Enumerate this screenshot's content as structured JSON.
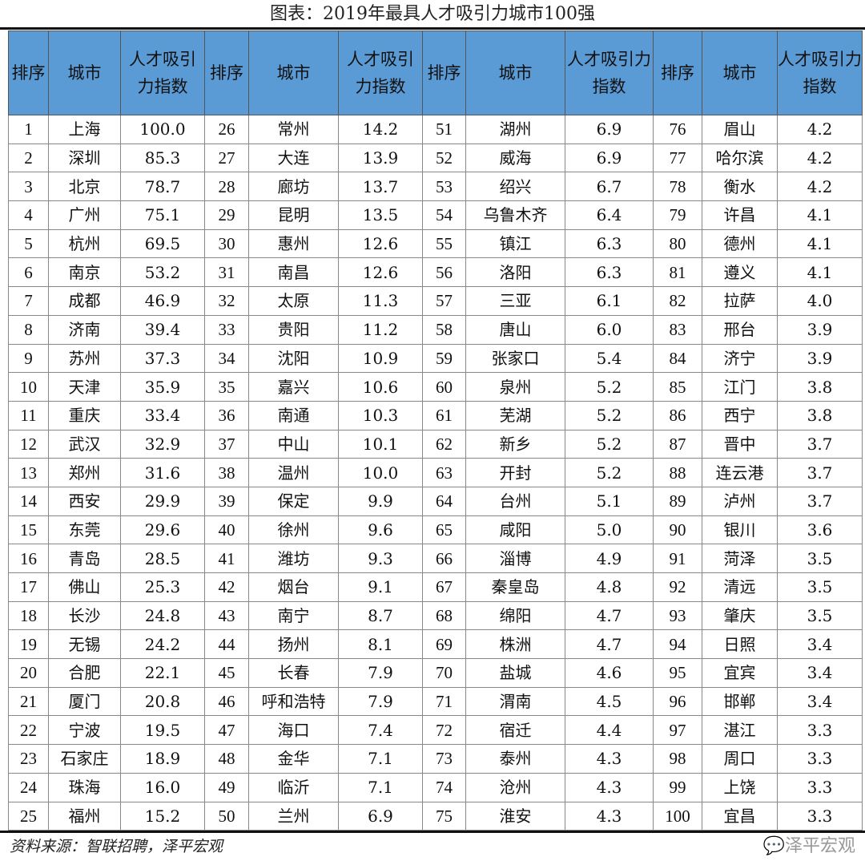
{
  "title": "图表：2019年最具人才吸引力城市100强",
  "headers": {
    "rank": "排序",
    "city": "城市",
    "index": "人才吸引力指数"
  },
  "header_color": "#5B9BD5",
  "rows": [
    [
      "1",
      "上海",
      "100.0"
    ],
    [
      "2",
      "深圳",
      "85.3"
    ],
    [
      "3",
      "北京",
      "78.7"
    ],
    [
      "4",
      "广州",
      "75.1"
    ],
    [
      "5",
      "杭州",
      "69.5"
    ],
    [
      "6",
      "南京",
      "53.2"
    ],
    [
      "7",
      "成都",
      "46.9"
    ],
    [
      "8",
      "济南",
      "39.4"
    ],
    [
      "9",
      "苏州",
      "37.3"
    ],
    [
      "10",
      "天津",
      "35.9"
    ],
    [
      "11",
      "重庆",
      "33.4"
    ],
    [
      "12",
      "武汉",
      "32.9"
    ],
    [
      "13",
      "郑州",
      "31.6"
    ],
    [
      "14",
      "西安",
      "29.9"
    ],
    [
      "15",
      "东莞",
      "29.6"
    ],
    [
      "16",
      "青岛",
      "28.5"
    ],
    [
      "17",
      "佛山",
      "25.3"
    ],
    [
      "18",
      "长沙",
      "24.8"
    ],
    [
      "19",
      "无锡",
      "24.2"
    ],
    [
      "20",
      "合肥",
      "22.1"
    ],
    [
      "21",
      "厦门",
      "20.8"
    ],
    [
      "22",
      "宁波",
      "19.5"
    ],
    [
      "23",
      "石家庄",
      "18.9"
    ],
    [
      "24",
      "珠海",
      "16.0"
    ],
    [
      "25",
      "福州",
      "15.2"
    ],
    [
      "26",
      "常州",
      "14.2"
    ],
    [
      "27",
      "大连",
      "13.9"
    ],
    [
      "28",
      "廊坊",
      "13.7"
    ],
    [
      "29",
      "昆明",
      "13.5"
    ],
    [
      "30",
      "惠州",
      "12.6"
    ],
    [
      "31",
      "南昌",
      "12.6"
    ],
    [
      "32",
      "太原",
      "11.3"
    ],
    [
      "33",
      "贵阳",
      "11.2"
    ],
    [
      "34",
      "沈阳",
      "10.9"
    ],
    [
      "35",
      "嘉兴",
      "10.6"
    ],
    [
      "36",
      "南通",
      "10.3"
    ],
    [
      "37",
      "中山",
      "10.1"
    ],
    [
      "38",
      "温州",
      "10.0"
    ],
    [
      "39",
      "保定",
      "9.9"
    ],
    [
      "40",
      "徐州",
      "9.6"
    ],
    [
      "41",
      "潍坊",
      "9.3"
    ],
    [
      "42",
      "烟台",
      "9.1"
    ],
    [
      "43",
      "南宁",
      "8.7"
    ],
    [
      "44",
      "扬州",
      "8.1"
    ],
    [
      "45",
      "长春",
      "7.9"
    ],
    [
      "46",
      "呼和浩特",
      "7.9"
    ],
    [
      "47",
      "海口",
      "7.4"
    ],
    [
      "48",
      "金华",
      "7.1"
    ],
    [
      "49",
      "临沂",
      "7.1"
    ],
    [
      "50",
      "兰州",
      "6.9"
    ],
    [
      "51",
      "湖州",
      "6.9"
    ],
    [
      "52",
      "威海",
      "6.9"
    ],
    [
      "53",
      "绍兴",
      "6.7"
    ],
    [
      "54",
      "乌鲁木齐",
      "6.4"
    ],
    [
      "55",
      "镇江",
      "6.3"
    ],
    [
      "56",
      "洛阳",
      "6.3"
    ],
    [
      "57",
      "三亚",
      "6.1"
    ],
    [
      "58",
      "唐山",
      "6.0"
    ],
    [
      "59",
      "张家口",
      "5.4"
    ],
    [
      "60",
      "泉州",
      "5.2"
    ],
    [
      "61",
      "芜湖",
      "5.2"
    ],
    [
      "62",
      "新乡",
      "5.2"
    ],
    [
      "63",
      "开封",
      "5.2"
    ],
    [
      "64",
      "台州",
      "5.1"
    ],
    [
      "65",
      "咸阳",
      "5.0"
    ],
    [
      "66",
      "淄博",
      "4.9"
    ],
    [
      "67",
      "秦皇岛",
      "4.8"
    ],
    [
      "68",
      "绵阳",
      "4.7"
    ],
    [
      "69",
      "株洲",
      "4.7"
    ],
    [
      "70",
      "盐城",
      "4.6"
    ],
    [
      "71",
      "渭南",
      "4.5"
    ],
    [
      "72",
      "宿迁",
      "4.4"
    ],
    [
      "73",
      "泰州",
      "4.3"
    ],
    [
      "74",
      "沧州",
      "4.3"
    ],
    [
      "75",
      "淮安",
      "4.3"
    ],
    [
      "76",
      "眉山",
      "4.2"
    ],
    [
      "77",
      "哈尔滨",
      "4.2"
    ],
    [
      "78",
      "衡水",
      "4.2"
    ],
    [
      "79",
      "许昌",
      "4.1"
    ],
    [
      "80",
      "德州",
      "4.1"
    ],
    [
      "81",
      "遵义",
      "4.1"
    ],
    [
      "82",
      "拉萨",
      "4.0"
    ],
    [
      "83",
      "邢台",
      "3.9"
    ],
    [
      "84",
      "济宁",
      "3.9"
    ],
    [
      "85",
      "江门",
      "3.8"
    ],
    [
      "86",
      "西宁",
      "3.8"
    ],
    [
      "87",
      "晋中",
      "3.7"
    ],
    [
      "88",
      "连云港",
      "3.7"
    ],
    [
      "89",
      "泸州",
      "3.7"
    ],
    [
      "90",
      "银川",
      "3.6"
    ],
    [
      "91",
      "菏泽",
      "3.5"
    ],
    [
      "92",
      "清远",
      "3.5"
    ],
    [
      "93",
      "肇庆",
      "3.5"
    ],
    [
      "94",
      "日照",
      "3.4"
    ],
    [
      "95",
      "宜宾",
      "3.4"
    ],
    [
      "96",
      "邯郸",
      "3.4"
    ],
    [
      "97",
      "湛江",
      "3.3"
    ],
    [
      "98",
      "周口",
      "3.3"
    ],
    [
      "99",
      "上饶",
      "3.3"
    ],
    [
      "100",
      "宜昌",
      "3.3"
    ]
  ],
  "source": "资料来源：智联招聘，泽平宏观",
  "watermark": "泽平宏观",
  "watermark_icon": "wechat-icon"
}
